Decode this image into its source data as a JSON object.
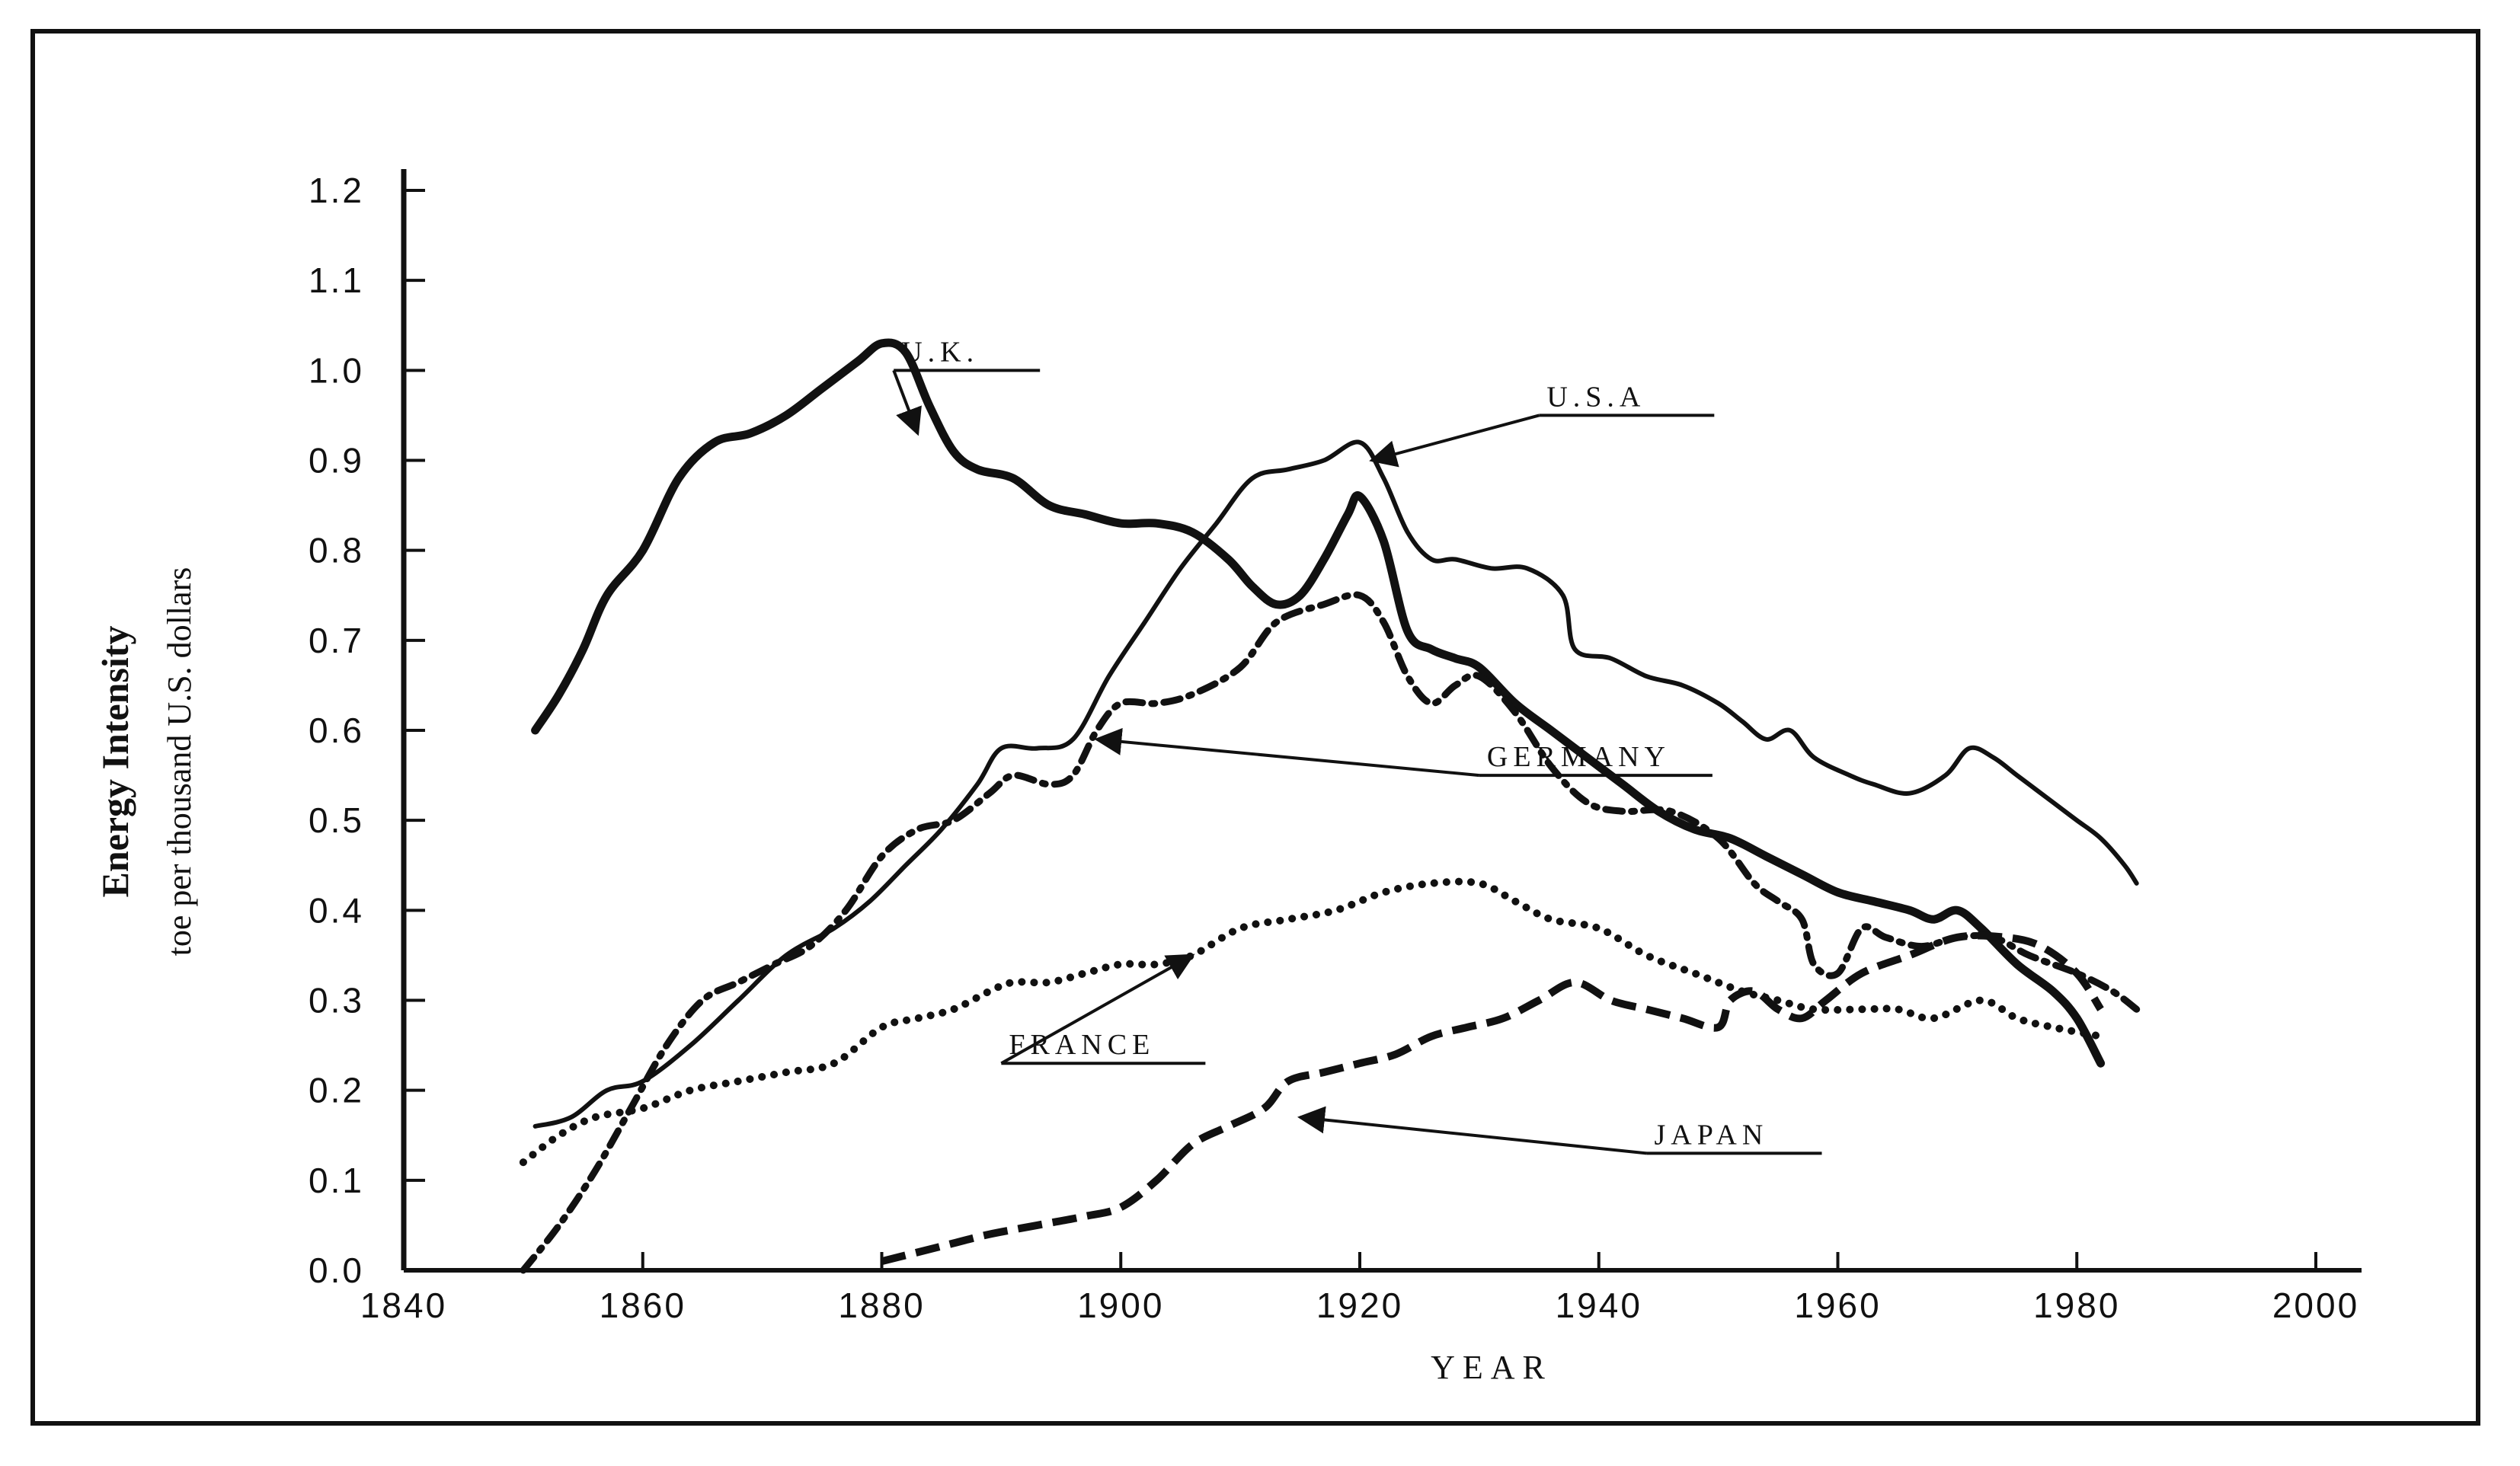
{
  "chart_data": {
    "type": "line",
    "title": "",
    "xlabel": "YEAR",
    "ylabel": "Energy Intensity",
    "ylabel_sub": "toe per thousand U.S. dollars",
    "xlim": [
      1840,
      2000
    ],
    "ylim": [
      0.0,
      1.2
    ],
    "xticks": [
      1840,
      1860,
      1880,
      1900,
      1920,
      1940,
      1960,
      1980,
      2000
    ],
    "yticks": [
      "0.0",
      "0.1",
      "0.2",
      "0.3",
      "0.4",
      "0.5",
      "0.6",
      "0.7",
      "0.8",
      "0.9",
      "1.0",
      "1.1",
      "1.2"
    ],
    "grid": false,
    "series": [
      {
        "name": "U.K.",
        "label": "U.K.",
        "style": "thick-solid",
        "label_anchor": {
          "x": 1881,
          "y": 1.0
        },
        "arrow_to": {
          "x": 1883,
          "y": 0.93
        },
        "points": [
          [
            1851,
            0.6
          ],
          [
            1853,
            0.64
          ],
          [
            1855,
            0.69
          ],
          [
            1857,
            0.75
          ],
          [
            1860,
            0.8
          ],
          [
            1863,
            0.88
          ],
          [
            1866,
            0.92
          ],
          [
            1869,
            0.93
          ],
          [
            1872,
            0.95
          ],
          [
            1875,
            0.98
          ],
          [
            1878,
            1.01
          ],
          [
            1880,
            1.03
          ],
          [
            1882,
            1.02
          ],
          [
            1884,
            0.96
          ],
          [
            1886,
            0.91
          ],
          [
            1888,
            0.89
          ],
          [
            1891,
            0.88
          ],
          [
            1894,
            0.85
          ],
          [
            1897,
            0.84
          ],
          [
            1900,
            0.83
          ],
          [
            1903,
            0.83
          ],
          [
            1906,
            0.82
          ],
          [
            1909,
            0.79
          ],
          [
            1911,
            0.76
          ],
          [
            1913,
            0.74
          ],
          [
            1915,
            0.75
          ],
          [
            1917,
            0.79
          ],
          [
            1919,
            0.84
          ],
          [
            1920,
            0.86
          ],
          [
            1922,
            0.81
          ],
          [
            1924,
            0.71
          ],
          [
            1926,
            0.69
          ],
          [
            1928,
            0.68
          ],
          [
            1930,
            0.67
          ],
          [
            1933,
            0.63
          ],
          [
            1936,
            0.6
          ],
          [
            1939,
            0.57
          ],
          [
            1942,
            0.54
          ],
          [
            1945,
            0.51
          ],
          [
            1948,
            0.49
          ],
          [
            1951,
            0.48
          ],
          [
            1954,
            0.46
          ],
          [
            1957,
            0.44
          ],
          [
            1960,
            0.42
          ],
          [
            1963,
            0.41
          ],
          [
            1966,
            0.4
          ],
          [
            1968,
            0.39
          ],
          [
            1970,
            0.4
          ],
          [
            1972,
            0.38
          ],
          [
            1975,
            0.34
          ],
          [
            1978,
            0.31
          ],
          [
            1980,
            0.28
          ],
          [
            1982,
            0.23
          ]
        ]
      },
      {
        "name": "U.S.A",
        "label": "U.S.A",
        "style": "solid",
        "label_anchor": {
          "x": 1935,
          "y": 0.95
        },
        "arrow_to": {
          "x": 1921,
          "y": 0.9
        },
        "points": [
          [
            1851,
            0.16
          ],
          [
            1854,
            0.17
          ],
          [
            1857,
            0.2
          ],
          [
            1860,
            0.21
          ],
          [
            1864,
            0.25
          ],
          [
            1868,
            0.3
          ],
          [
            1872,
            0.35
          ],
          [
            1876,
            0.38
          ],
          [
            1879,
            0.41
          ],
          [
            1882,
            0.45
          ],
          [
            1885,
            0.49
          ],
          [
            1888,
            0.54
          ],
          [
            1890,
            0.58
          ],
          [
            1893,
            0.58
          ],
          [
            1896,
            0.59
          ],
          [
            1899,
            0.66
          ],
          [
            1902,
            0.72
          ],
          [
            1905,
            0.78
          ],
          [
            1908,
            0.83
          ],
          [
            1911,
            0.88
          ],
          [
            1914,
            0.89
          ],
          [
            1917,
            0.9
          ],
          [
            1920,
            0.92
          ],
          [
            1922,
            0.88
          ],
          [
            1924,
            0.82
          ],
          [
            1926,
            0.79
          ],
          [
            1928,
            0.79
          ],
          [
            1931,
            0.78
          ],
          [
            1934,
            0.78
          ],
          [
            1937,
            0.75
          ],
          [
            1938,
            0.69
          ],
          [
            1941,
            0.68
          ],
          [
            1944,
            0.66
          ],
          [
            1947,
            0.65
          ],
          [
            1950,
            0.63
          ],
          [
            1952,
            0.61
          ],
          [
            1954,
            0.59
          ],
          [
            1956,
            0.6
          ],
          [
            1958,
            0.57
          ],
          [
            1961,
            0.55
          ],
          [
            1963,
            0.54
          ],
          [
            1966,
            0.53
          ],
          [
            1969,
            0.55
          ],
          [
            1971,
            0.58
          ],
          [
            1973,
            0.57
          ],
          [
            1975,
            0.55
          ],
          [
            1978,
            0.52
          ],
          [
            1980,
            0.5
          ],
          [
            1982,
            0.48
          ],
          [
            1984,
            0.45
          ],
          [
            1985,
            0.43
          ]
        ]
      },
      {
        "name": "GERMANY",
        "label": "GERMANY",
        "style": "dash-dot",
        "label_anchor": {
          "x": 1930,
          "y": 0.55
        },
        "arrow_to": {
          "x": 1898,
          "y": 0.59
        },
        "points": [
          [
            1850,
            0.0
          ],
          [
            1853,
            0.05
          ],
          [
            1856,
            0.11
          ],
          [
            1859,
            0.18
          ],
          [
            1862,
            0.25
          ],
          [
            1865,
            0.3
          ],
          [
            1868,
            0.32
          ],
          [
            1871,
            0.34
          ],
          [
            1874,
            0.36
          ],
          [
            1877,
            0.4
          ],
          [
            1880,
            0.46
          ],
          [
            1883,
            0.49
          ],
          [
            1886,
            0.5
          ],
          [
            1889,
            0.53
          ],
          [
            1891,
            0.55
          ],
          [
            1894,
            0.54
          ],
          [
            1896,
            0.55
          ],
          [
            1898,
            0.6
          ],
          [
            1900,
            0.63
          ],
          [
            1903,
            0.63
          ],
          [
            1906,
            0.64
          ],
          [
            1910,
            0.67
          ],
          [
            1913,
            0.72
          ],
          [
            1917,
            0.74
          ],
          [
            1920,
            0.75
          ],
          [
            1922,
            0.72
          ],
          [
            1924,
            0.66
          ],
          [
            1926,
            0.63
          ],
          [
            1928,
            0.65
          ],
          [
            1930,
            0.66
          ],
          [
            1933,
            0.62
          ],
          [
            1936,
            0.56
          ],
          [
            1939,
            0.52
          ],
          [
            1942,
            0.51
          ],
          [
            1946,
            0.51
          ],
          [
            1950,
            0.48
          ],
          [
            1953,
            0.43
          ],
          [
            1955,
            0.41
          ],
          [
            1957,
            0.39
          ],
          [
            1958,
            0.34
          ],
          [
            1960,
            0.33
          ],
          [
            1962,
            0.38
          ],
          [
            1964,
            0.37
          ],
          [
            1967,
            0.36
          ],
          [
            1970,
            0.37
          ],
          [
            1973,
            0.37
          ],
          [
            1976,
            0.35
          ],
          [
            1980,
            0.33
          ],
          [
            1983,
            0.31
          ],
          [
            1985,
            0.29
          ]
        ]
      },
      {
        "name": "FRANCE",
        "label": "FRANCE",
        "style": "dotted",
        "label_anchor": {
          "x": 1890,
          "y": 0.23
        },
        "arrow_to": {
          "x": 1906,
          "y": 0.35
        },
        "points": [
          [
            1850,
            0.12
          ],
          [
            1853,
            0.15
          ],
          [
            1856,
            0.17
          ],
          [
            1860,
            0.18
          ],
          [
            1864,
            0.2
          ],
          [
            1868,
            0.21
          ],
          [
            1872,
            0.22
          ],
          [
            1876,
            0.23
          ],
          [
            1880,
            0.27
          ],
          [
            1883,
            0.28
          ],
          [
            1886,
            0.29
          ],
          [
            1889,
            0.31
          ],
          [
            1891,
            0.32
          ],
          [
            1894,
            0.32
          ],
          [
            1897,
            0.33
          ],
          [
            1900,
            0.34
          ],
          [
            1903,
            0.34
          ],
          [
            1906,
            0.35
          ],
          [
            1910,
            0.38
          ],
          [
            1914,
            0.39
          ],
          [
            1918,
            0.4
          ],
          [
            1922,
            0.42
          ],
          [
            1926,
            0.43
          ],
          [
            1930,
            0.43
          ],
          [
            1933,
            0.41
          ],
          [
            1936,
            0.39
          ],
          [
            1940,
            0.38
          ],
          [
            1944,
            0.35
          ],
          [
            1948,
            0.33
          ],
          [
            1952,
            0.31
          ],
          [
            1955,
            0.3
          ],
          [
            1958,
            0.29
          ],
          [
            1962,
            0.29
          ],
          [
            1965,
            0.29
          ],
          [
            1968,
            0.28
          ],
          [
            1972,
            0.3
          ],
          [
            1975,
            0.28
          ],
          [
            1978,
            0.27
          ],
          [
            1982,
            0.26
          ]
        ]
      },
      {
        "name": "JAPAN",
        "label": "JAPAN",
        "style": "dashed",
        "label_anchor": {
          "x": 1944,
          "y": 0.13
        },
        "arrow_to": {
          "x": 1915,
          "y": 0.17
        },
        "points": [
          [
            1880,
            0.01
          ],
          [
            1883,
            0.02
          ],
          [
            1886,
            0.03
          ],
          [
            1889,
            0.04
          ],
          [
            1893,
            0.05
          ],
          [
            1897,
            0.06
          ],
          [
            1900,
            0.07
          ],
          [
            1903,
            0.1
          ],
          [
            1906,
            0.14
          ],
          [
            1909,
            0.16
          ],
          [
            1912,
            0.18
          ],
          [
            1914,
            0.21
          ],
          [
            1917,
            0.22
          ],
          [
            1920,
            0.23
          ],
          [
            1923,
            0.24
          ],
          [
            1926,
            0.26
          ],
          [
            1929,
            0.27
          ],
          [
            1932,
            0.28
          ],
          [
            1935,
            0.3
          ],
          [
            1938,
            0.32
          ],
          [
            1941,
            0.3
          ],
          [
            1944,
            0.29
          ],
          [
            1947,
            0.28
          ],
          [
            1950,
            0.27
          ],
          [
            1951,
            0.3
          ],
          [
            1953,
            0.31
          ],
          [
            1955,
            0.29
          ],
          [
            1957,
            0.28
          ],
          [
            1959,
            0.3
          ],
          [
            1962,
            0.33
          ],
          [
            1966,
            0.35
          ],
          [
            1970,
            0.37
          ],
          [
            1974,
            0.37
          ],
          [
            1977,
            0.36
          ],
          [
            1980,
            0.33
          ],
          [
            1982,
            0.29
          ]
        ]
      }
    ]
  }
}
